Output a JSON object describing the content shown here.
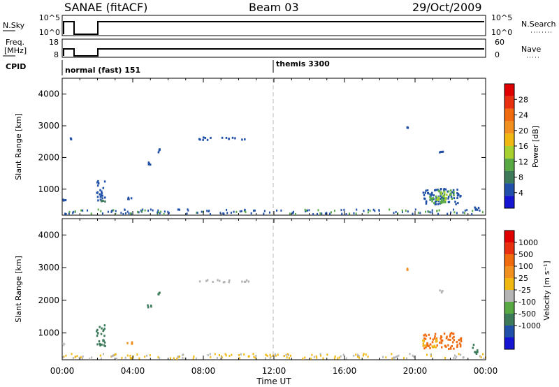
{
  "header": {
    "station": "SANAE (fitACF)",
    "beam": "Beam 03",
    "date": "29/Oct/2009"
  },
  "strips": {
    "nsky_label": "N.Sky",
    "nsearch_label": "N.Search",
    "nsky_top": "10^5",
    "nsky_bottom": "10^0",
    "nsearch_top": "10^5",
    "nsearch_bottom": "10^0",
    "freq_label_line1": "Freq.",
    "freq_label_line2": "[MHz]",
    "freq_top": "18",
    "freq_bottom": "8",
    "nave_label": "Nave",
    "nave_top": "60",
    "nave_bottom": "0",
    "cpid_label": "CPID",
    "cpid_mode1": "normal (fast) 151",
    "cpid_mode2": "themis 3300"
  },
  "chart_data": [
    {
      "type": "scatter",
      "name": "power-panel",
      "ylabel": "Slant Range [km]",
      "xlabel": "Time UT",
      "x_tick_labels": [
        "00:00",
        "04:00",
        "08:00",
        "12:00",
        "16:00",
        "20:00",
        "00:00"
      ],
      "x_ticks_hours": [
        0,
        4,
        8,
        12,
        16,
        20,
        24
      ],
      "y_ticks": [
        1000,
        2000,
        3000,
        4000
      ],
      "ylim": [
        180,
        4500
      ],
      "xlim_hours": [
        0,
        24
      ],
      "colorbar": {
        "label": "Power [dB]",
        "ticks": [
          "4",
          "8",
          "12",
          "16",
          "20",
          "24",
          "28"
        ],
        "colors": [
          "#1414d2",
          "#2050a8",
          "#3c7a5a",
          "#58a844",
          "#a8d030",
          "#f0b810",
          "#f09020",
          "#f06a10",
          "#e83010",
          "#e00000"
        ]
      },
      "clusters": [
        {
          "x": [
            0.0,
            0.3
          ],
          "y": [
            620,
            660
          ],
          "color": "#2050a8"
        },
        {
          "x": [
            0.4,
            0.5
          ],
          "y": [
            2560,
            2600
          ],
          "color": "#2050a8"
        },
        {
          "x": [
            1.9,
            2.4
          ],
          "y": [
            600,
            1250
          ],
          "color": "#2050a8"
        },
        {
          "x": [
            2.0,
            2.4
          ],
          "y": [
            580,
            640
          ],
          "color": "#3c7a5a"
        },
        {
          "x": [
            4.8,
            5.0
          ],
          "y": [
            1750,
            1850
          ],
          "color": "#2050a8"
        },
        {
          "x": [
            5.3,
            5.5
          ],
          "y": [
            2150,
            2250
          ],
          "color": "#2050a8"
        },
        {
          "x": [
            3.6,
            4.0
          ],
          "y": [
            650,
            720
          ],
          "color": "#2050a8"
        },
        {
          "x": [
            7.7,
            10.6
          ],
          "y": [
            2540,
            2620
          ],
          "color": "#2050a8"
        },
        {
          "x": [
            19.5,
            19.6
          ],
          "y": [
            2920,
            2960
          ],
          "color": "#2050a8"
        },
        {
          "x": [
            21.3,
            21.6
          ],
          "y": [
            2150,
            2300
          ],
          "color": "#2050a8"
        },
        {
          "x": [
            20.4,
            22.6
          ],
          "y": [
            500,
            1000
          ],
          "color": "#2050a8"
        },
        {
          "x": [
            20.8,
            22.2
          ],
          "y": [
            550,
            950
          ],
          "color": "#58a844"
        },
        {
          "x": [
            21.2,
            22.0
          ],
          "y": [
            600,
            900
          ],
          "color": "#a8d030"
        },
        {
          "x": [
            23.2,
            23.6
          ],
          "y": [
            300,
            450
          ],
          "color": "#2050a8"
        }
      ]
    },
    {
      "type": "scatter",
      "name": "velocity-panel",
      "ylabel": "Slant Range [km]",
      "xlabel": "Time UT",
      "x_tick_labels": [
        "00:00",
        "04:00",
        "08:00",
        "12:00",
        "16:00",
        "20:00",
        "00:00"
      ],
      "x_ticks_hours": [
        0,
        4,
        8,
        12,
        16,
        20,
        24
      ],
      "y_ticks": [
        1000,
        2000,
        3000,
        4000
      ],
      "ylim": [
        180,
        4500
      ],
      "xlim_hours": [
        0,
        24
      ],
      "colorbar": {
        "label": "Velocity [m s⁻¹]",
        "ticks": [
          "1000",
          "500",
          "100",
          "25",
          "-25",
          "-100",
          "-500",
          "-1000"
        ],
        "colors": [
          "#1414d2",
          "#2050a8",
          "#3c7a5a",
          "#58a844",
          "#b4b4b4",
          "#f0b810",
          "#f09020",
          "#f06a10",
          "#e83010",
          "#e00000"
        ]
      },
      "clusters": [
        {
          "x": [
            0.0,
            0.3
          ],
          "y": [
            620,
            660
          ],
          "color": "#c8c8c8"
        },
        {
          "x": [
            1.9,
            2.4
          ],
          "y": [
            600,
            1250
          ],
          "color": "#3c7a5a"
        },
        {
          "x": [
            2.0,
            2.4
          ],
          "y": [
            580,
            640
          ],
          "color": "#3c7a5a"
        },
        {
          "x": [
            4.8,
            5.0
          ],
          "y": [
            1750,
            1850
          ],
          "color": "#3c7a5a"
        },
        {
          "x": [
            5.3,
            5.5
          ],
          "y": [
            2150,
            2250
          ],
          "color": "#3c7a5a"
        },
        {
          "x": [
            3.6,
            4.0
          ],
          "y": [
            650,
            720
          ],
          "color": "#f09020"
        },
        {
          "x": [
            7.7,
            10.6
          ],
          "y": [
            2540,
            2620
          ],
          "color": "#b4b4b4"
        },
        {
          "x": [
            19.5,
            19.6
          ],
          "y": [
            2920,
            2960
          ],
          "color": "#f09020"
        },
        {
          "x": [
            21.3,
            21.6
          ],
          "y": [
            2150,
            2300
          ],
          "color": "#b4b4b4"
        },
        {
          "x": [
            20.4,
            22.6
          ],
          "y": [
            500,
            1000
          ],
          "color": "#f06a10"
        },
        {
          "x": [
            20.4,
            21.2
          ],
          "y": [
            550,
            800
          ],
          "color": "#f0b810"
        },
        {
          "x": [
            23.2,
            23.6
          ],
          "y": [
            300,
            650
          ],
          "color": "#3c7a5a"
        }
      ]
    }
  ]
}
